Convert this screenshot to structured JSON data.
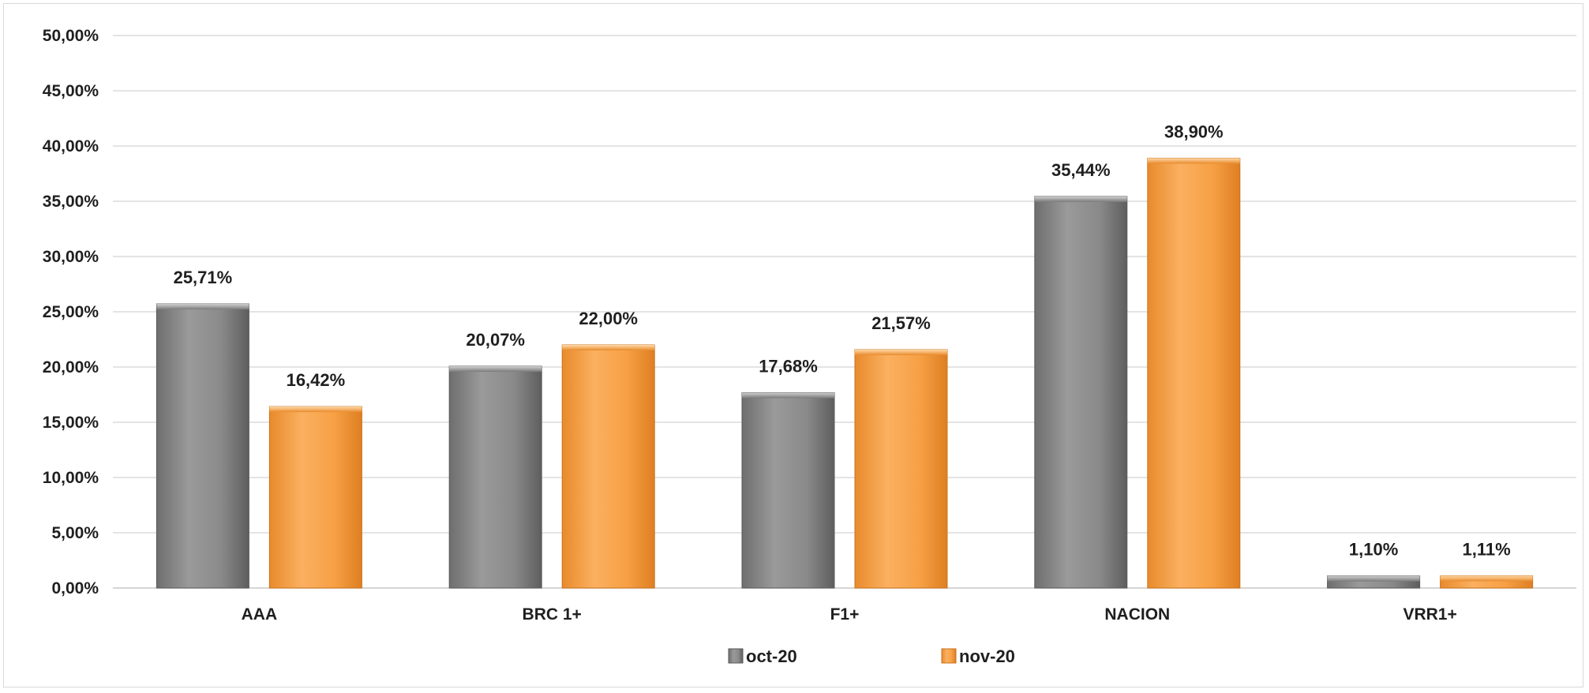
{
  "chart_data": {
    "type": "bar",
    "categories": [
      "AAA",
      "BRC 1+",
      "F1+",
      "NACION",
      "VRR1+"
    ],
    "series": [
      {
        "name": "oct-20",
        "color": "#8c8c8c",
        "values": [
          25.71,
          20.07,
          17.68,
          35.44,
          1.1
        ],
        "labels": [
          "25,71%",
          "20,07%",
          "17,68%",
          "35,44%",
          "1,10%"
        ]
      },
      {
        "name": "nov-20",
        "color": "#f7a045",
        "values": [
          16.42,
          22.0,
          21.57,
          38.9,
          1.11
        ],
        "labels": [
          "16,42%",
          "22,00%",
          "21,57%",
          "38,90%",
          "1,11%"
        ]
      }
    ],
    "ylim": [
      0,
      50
    ],
    "y_ticks": [
      {
        "value": 0,
        "label": "0,00%"
      },
      {
        "value": 5,
        "label": "5,00%"
      },
      {
        "value": 10,
        "label": "10,00%"
      },
      {
        "value": 15,
        "label": "15,00%"
      },
      {
        "value": 20,
        "label": "20,00%"
      },
      {
        "value": 25,
        "label": "25,00%"
      },
      {
        "value": 30,
        "label": "30,00%"
      },
      {
        "value": 35,
        "label": "35,00%"
      },
      {
        "value": 40,
        "label": "40,00%"
      },
      {
        "value": 45,
        "label": "45,00%"
      },
      {
        "value": 50,
        "label": "50,00%"
      }
    ],
    "grid": true,
    "legend_position": "bottom",
    "title": "",
    "xlabel": "",
    "ylabel": ""
  }
}
